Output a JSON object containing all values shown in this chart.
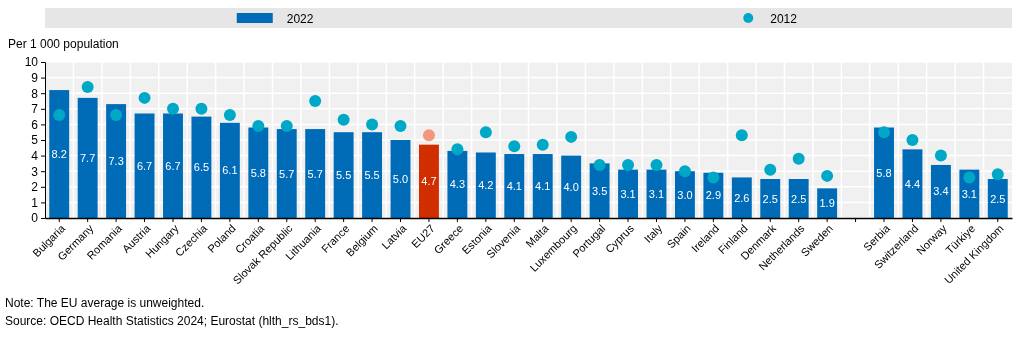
{
  "chart_data": {
    "type": "bar",
    "ylabel": "Per 1 000 population",
    "categories": [
      "Bulgaria",
      "Germany",
      "Romania",
      "Austria",
      "Hungary",
      "Czechia",
      "Poland",
      "Croatia",
      "Slovak Republic",
      "Lithuania",
      "France",
      "Belgium",
      "Latvia",
      "EU27",
      "Greece",
      "Estonia",
      "Slovenia",
      "Malta",
      "Luxembourg",
      "Portugal",
      "Cyprus",
      "Italy",
      "Spain",
      "Ireland",
      "Finland",
      "Denmark",
      "Netherlands",
      "Sweden",
      null,
      "Serbia",
      "Switzerland",
      "Norway",
      "Türkiye",
      "United Kingdom"
    ],
    "series": [
      {
        "name": "2022",
        "color": "#006bb6",
        "colors": [
          "#006bb6",
          "#006bb6",
          "#006bb6",
          "#006bb6",
          "#006bb6",
          "#006bb6",
          "#006bb6",
          "#006bb6",
          "#006bb6",
          "#006bb6",
          "#006bb6",
          "#006bb6",
          "#006bb6",
          "#d12e00",
          "#006bb6",
          "#006bb6",
          "#006bb6",
          "#006bb6",
          "#006bb6",
          "#006bb6",
          "#006bb6",
          "#006bb6",
          "#006bb6",
          "#006bb6",
          "#006bb6",
          "#006bb6",
          "#006bb6",
          "#006bb6",
          null,
          "#006bb6",
          "#006bb6",
          "#006bb6",
          "#006bb6",
          "#006bb6"
        ],
        "values": [
          8.2,
          7.7,
          7.3,
          6.7,
          6.7,
          6.5,
          6.1,
          5.8,
          5.7,
          5.7,
          5.5,
          5.5,
          5.0,
          4.7,
          4.3,
          4.2,
          4.1,
          4.1,
          4.0,
          3.5,
          3.1,
          3.1,
          3.0,
          2.9,
          2.6,
          2.5,
          2.5,
          1.9,
          null,
          5.8,
          4.4,
          3.4,
          3.1,
          2.5
        ],
        "value_labels": [
          "8.2",
          "7.7",
          "7.3",
          "6.7",
          "6.7",
          "6.5",
          "6.1",
          "5.8",
          "5.7",
          "5.7",
          "5.5",
          "5.5",
          "5.0",
          "4.7",
          "4.3",
          "4.2",
          "4.1",
          "4.1",
          "4.0",
          "3.5",
          "3.1",
          "3.1",
          "3.0",
          "2.9",
          "2.6",
          "2.5",
          "2.5",
          "1.9",
          null,
          "5.8",
          "4.4",
          "3.4",
          "3.1",
          "2.5"
        ]
      },
      {
        "name": "2012",
        "type": "scatter",
        "color": "#00a8c8",
        "colors": [
          "#00a8c8",
          "#00a8c8",
          "#00a8c8",
          "#00a8c8",
          "#00a8c8",
          "#00a8c8",
          "#00a8c8",
          "#00a8c8",
          "#00a8c8",
          "#00a8c8",
          "#00a8c8",
          "#00a8c8",
          "#00a8c8",
          "#f4977a",
          "#00a8c8",
          "#00a8c8",
          "#00a8c8",
          "#00a8c8",
          "#00a8c8",
          "#00a8c8",
          "#00a8c8",
          "#00a8c8",
          "#00a8c8",
          "#00a8c8",
          "#00a8c8",
          "#00a8c8",
          "#00a8c8",
          "#00a8c8",
          null,
          "#00a8c8",
          "#00a8c8",
          "#00a8c8",
          "#00a8c8",
          "#00a8c8"
        ],
        "values": [
          6.6,
          8.4,
          6.6,
          7.7,
          7.0,
          7.0,
          6.6,
          5.9,
          5.9,
          7.5,
          6.3,
          6.0,
          5.9,
          5.3,
          4.4,
          5.5,
          4.6,
          4.7,
          5.2,
          3.4,
          3.4,
          3.4,
          3.0,
          2.6,
          5.3,
          3.1,
          3.8,
          2.7,
          null,
          5.5,
          5.0,
          4.0,
          2.6,
          2.8
        ]
      }
    ],
    "ylim": [
      0,
      10
    ],
    "yticks": [
      0,
      1,
      2,
      3,
      4,
      5,
      6,
      7,
      8,
      9,
      10
    ],
    "grid": true,
    "legend": "top",
    "marker": "circle",
    "annotations": [
      "Note: The EU average is unweighted.",
      "Source: OECD Health Statistics 2024; Eurostat (hlth_rs_bds1)."
    ]
  }
}
